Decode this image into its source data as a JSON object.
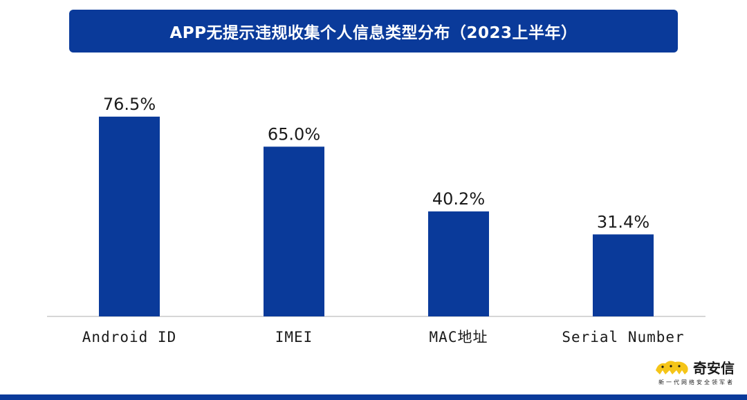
{
  "colors": {
    "accent": "#0A3A9A",
    "axis": "#c8c8c8",
    "logo_yellow": "#F5C518",
    "logo_text": "#1a1a1a"
  },
  "header": {
    "title": "APP无提示违规收集个人信息类型分布（2023上半年）"
  },
  "chart_data": {
    "type": "bar",
    "title": "APP无提示违规收集个人信息类型分布（2023上半年）",
    "categories": [
      "Android ID",
      "IMEI",
      "MAC地址",
      "Serial Number"
    ],
    "values": [
      76.5,
      65.0,
      40.2,
      31.4
    ],
    "value_labels": [
      "76.5%",
      "65.0%",
      "40.2%",
      "31.4%"
    ],
    "unit": "%",
    "ylim": [
      0,
      100
    ],
    "grid": false,
    "legend": "none"
  },
  "logo": {
    "name": "奇安信",
    "slogan": "新一代网络安全领军者",
    "icon": "panther-logo-icon"
  }
}
